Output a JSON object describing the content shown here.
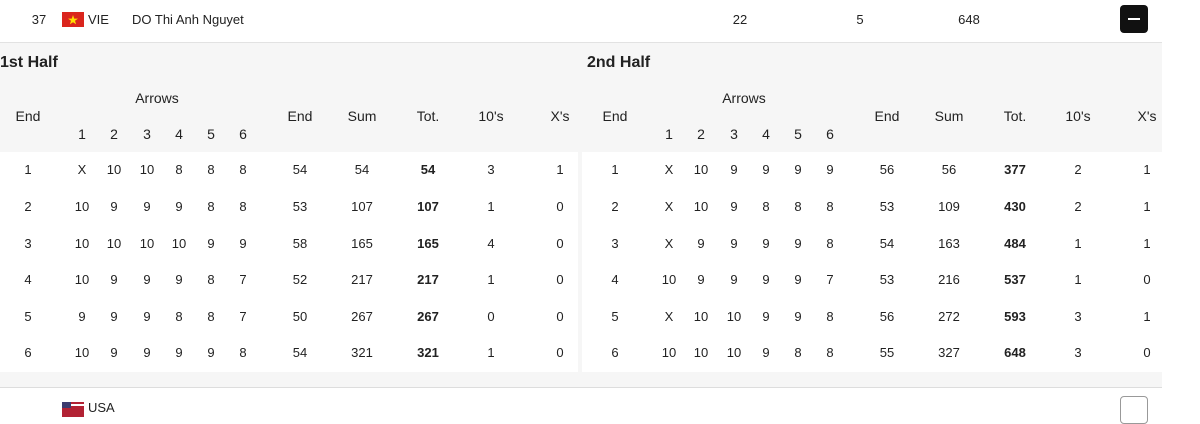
{
  "athlete": {
    "rank": "37",
    "country": "VIE",
    "name": "DO Thi Anh Nguyet",
    "tens": "22",
    "xs": "5",
    "total": "648"
  },
  "halves": [
    {
      "title": "1st Half",
      "arrows_label": "Arrows",
      "headers": {
        "end": "End",
        "end_score": "End",
        "sum": "Sum",
        "tot": "Tot.",
        "tens": "10's",
        "xs": "X's"
      },
      "arrow_numbers": [
        1,
        2,
        3,
        4,
        5,
        6
      ],
      "rows": [
        {
          "end": 1,
          "arrows": [
            "X",
            10,
            10,
            8,
            8,
            8
          ],
          "end_score": 54,
          "sum": 54,
          "tot": 54,
          "tens": 3,
          "xs": 1
        },
        {
          "end": 2,
          "arrows": [
            10,
            9,
            9,
            9,
            8,
            8
          ],
          "end_score": 53,
          "sum": 107,
          "tot": 107,
          "tens": 1,
          "xs": 0
        },
        {
          "end": 3,
          "arrows": [
            10,
            10,
            10,
            10,
            9,
            9
          ],
          "end_score": 58,
          "sum": 165,
          "tot": 165,
          "tens": 4,
          "xs": 0
        },
        {
          "end": 4,
          "arrows": [
            10,
            9,
            9,
            9,
            8,
            7
          ],
          "end_score": 52,
          "sum": 217,
          "tot": 217,
          "tens": 1,
          "xs": 0
        },
        {
          "end": 5,
          "arrows": [
            9,
            9,
            9,
            8,
            8,
            7
          ],
          "end_score": 50,
          "sum": 267,
          "tot": 267,
          "tens": 0,
          "xs": 0
        },
        {
          "end": 6,
          "arrows": [
            10,
            9,
            9,
            9,
            9,
            8
          ],
          "end_score": 54,
          "sum": 321,
          "tot": 321,
          "tens": 1,
          "xs": 0
        }
      ]
    },
    {
      "title": "2nd Half",
      "arrows_label": "Arrows",
      "headers": {
        "end": "End",
        "end_score": "End",
        "sum": "Sum",
        "tot": "Tot.",
        "tens": "10's",
        "xs": "X's"
      },
      "arrow_numbers": [
        1,
        2,
        3,
        4,
        5,
        6
      ],
      "rows": [
        {
          "end": 1,
          "arrows": [
            "X",
            10,
            9,
            9,
            9,
            9
          ],
          "end_score": 56,
          "sum": 56,
          "tot": 377,
          "tens": 2,
          "xs": 1
        },
        {
          "end": 2,
          "arrows": [
            "X",
            10,
            9,
            8,
            8,
            8
          ],
          "end_score": 53,
          "sum": 109,
          "tot": 430,
          "tens": 2,
          "xs": 1
        },
        {
          "end": 3,
          "arrows": [
            "X",
            9,
            9,
            9,
            9,
            8
          ],
          "end_score": 54,
          "sum": 163,
          "tot": 484,
          "tens": 1,
          "xs": 1
        },
        {
          "end": 4,
          "arrows": [
            10,
            9,
            9,
            9,
            9,
            7
          ],
          "end_score": 53,
          "sum": 216,
          "tot": 537,
          "tens": 1,
          "xs": 0
        },
        {
          "end": 5,
          "arrows": [
            "X",
            10,
            10,
            9,
            9,
            8
          ],
          "end_score": 56,
          "sum": 272,
          "tot": 593,
          "tens": 3,
          "xs": 1
        },
        {
          "end": 6,
          "arrows": [
            10,
            10,
            10,
            9,
            8,
            8
          ],
          "end_score": 55,
          "sum": 327,
          "tot": 648,
          "tens": 3,
          "xs": 0
        }
      ]
    }
  ],
  "next_athlete": {
    "country": "USA"
  }
}
